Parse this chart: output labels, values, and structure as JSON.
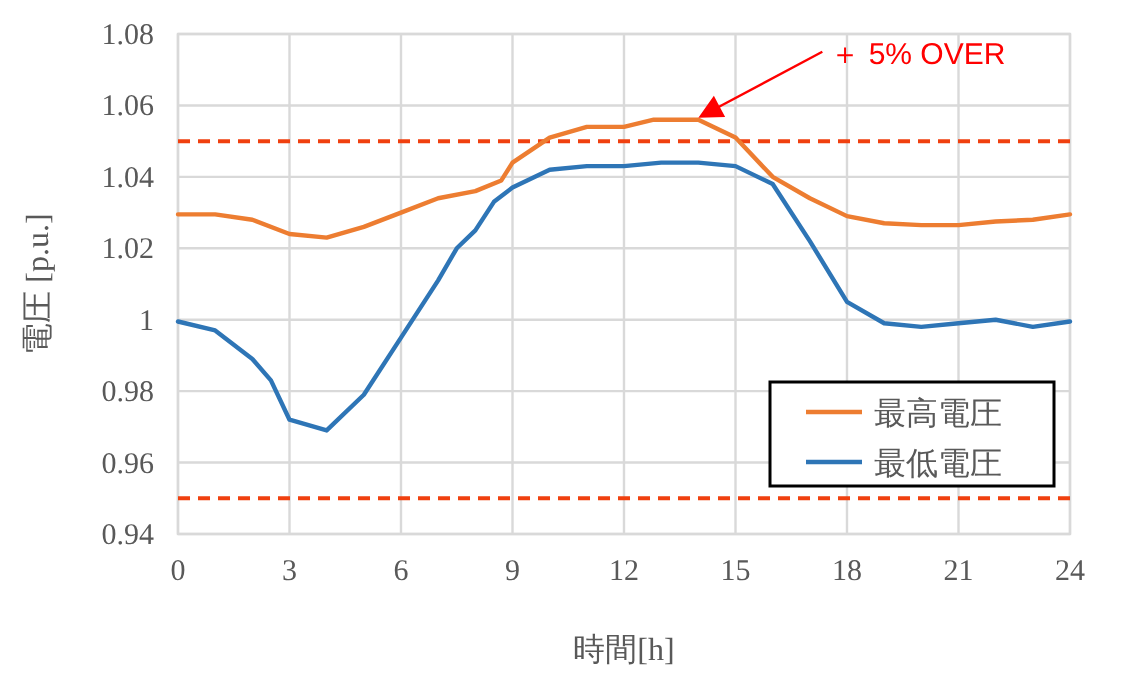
{
  "chart_data": {
    "type": "line",
    "xlabel": "時間[h]",
    "ylabel": "電圧 [p.u.]",
    "xlim": [
      0,
      24
    ],
    "ylim": [
      0.94,
      1.08
    ],
    "xticks": [
      0,
      3,
      6,
      9,
      12,
      15,
      18,
      21,
      24
    ],
    "yticks": [
      0.94,
      0.96,
      0.98,
      1,
      1.02,
      1.04,
      1.06,
      1.08
    ],
    "grid": true,
    "legend": "bottom right",
    "series": [
      {
        "name": "最高電圧",
        "color": "#ed7d31",
        "x": [
          0,
          1,
          2,
          3,
          4,
          5,
          6,
          7,
          8,
          8.7,
          9,
          10,
          11,
          12,
          12.8,
          14,
          15,
          16,
          17,
          18,
          19,
          20,
          21,
          22,
          23,
          24
        ],
        "values": [
          1.0295,
          1.0295,
          1.028,
          1.024,
          1.023,
          1.026,
          1.03,
          1.034,
          1.036,
          1.039,
          1.044,
          1.051,
          1.054,
          1.054,
          1.056,
          1.056,
          1.051,
          1.04,
          1.034,
          1.029,
          1.027,
          1.0265,
          1.0265,
          1.0275,
          1.028,
          1.0295
        ]
      },
      {
        "name": "最低電圧",
        "color": "#2e75b6",
        "x": [
          0,
          1,
          2,
          2.5,
          3,
          4,
          5,
          6,
          7,
          7.5,
          8,
          8.5,
          9,
          10,
          11,
          12,
          13,
          14,
          15,
          16,
          17,
          18,
          19,
          20,
          21,
          22,
          23,
          24
        ],
        "values": [
          0.9995,
          0.997,
          0.989,
          0.983,
          0.972,
          0.969,
          0.979,
          0.995,
          1.011,
          1.02,
          1.025,
          1.033,
          1.037,
          1.042,
          1.043,
          1.043,
          1.044,
          1.044,
          1.043,
          1.038,
          1.022,
          1.005,
          0.999,
          0.998,
          0.999,
          1.0,
          0.998,
          0.9995
        ]
      }
    ],
    "ref_lines": [
      {
        "axis": "y",
        "value": 1.05,
        "color": "#f0400f",
        "line_style": "dashed"
      },
      {
        "axis": "y",
        "value": 0.95,
        "color": "#f0400f",
        "line_style": "dashed"
      }
    ],
    "annotations": [
      "＋ 5% OVER"
    ]
  }
}
